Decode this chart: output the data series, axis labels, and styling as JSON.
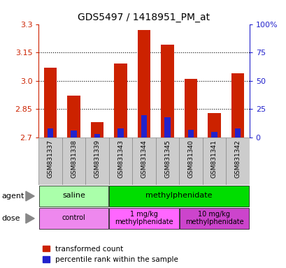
{
  "title": "GDS5497 / 1418951_PM_at",
  "samples": [
    "GSM831337",
    "GSM831338",
    "GSM831339",
    "GSM831343",
    "GSM831344",
    "GSM831345",
    "GSM831340",
    "GSM831341",
    "GSM831342"
  ],
  "red_values": [
    3.07,
    2.92,
    2.78,
    3.09,
    3.27,
    3.19,
    3.01,
    2.83,
    3.04
  ],
  "blue_pct": [
    8,
    6,
    3,
    8,
    20,
    18,
    7,
    5,
    8
  ],
  "ymin": 2.7,
  "ymax": 3.3,
  "yticks": [
    2.7,
    2.85,
    3.0,
    3.15,
    3.3
  ],
  "y2ticks": [
    0,
    25,
    50,
    75,
    100
  ],
  "y2labels": [
    "0",
    "25",
    "50",
    "75",
    "100%"
  ],
  "agent_groups": [
    {
      "label": "saline",
      "start": 0,
      "end": 3,
      "color": "#AAFFAA"
    },
    {
      "label": "methylphenidate",
      "start": 3,
      "end": 9,
      "color": "#00DD00"
    }
  ],
  "dose_groups": [
    {
      "label": "control",
      "start": 0,
      "end": 3,
      "color": "#EE88EE"
    },
    {
      "label": "1 mg/kg\nmethylphenidate",
      "start": 3,
      "end": 6,
      "color": "#FF66FF"
    },
    {
      "label": "10 mg/kg\nmethylphenidate",
      "start": 6,
      "end": 9,
      "color": "#CC44CC"
    }
  ],
  "bar_color": "#CC2200",
  "blue_color": "#2222CC",
  "grid_color": "#000000",
  "label_color_red": "#CC2200",
  "label_color_blue": "#2222CC",
  "bg_color": "#FFFFFF",
  "sample_bg": "#CCCCCC",
  "bar_width": 0.55,
  "blue_bar_width": 0.25
}
